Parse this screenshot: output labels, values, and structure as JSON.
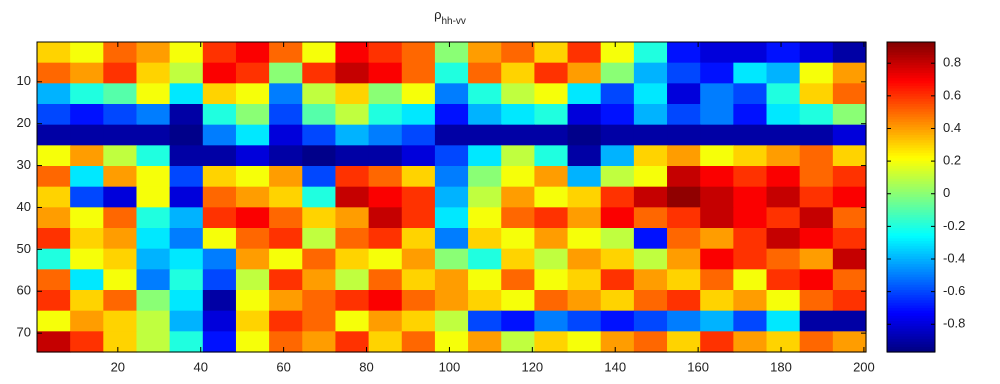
{
  "chart_data": {
    "type": "heatmap",
    "title": "ρ",
    "title_subscript": "hh-vv",
    "colormap": "jet",
    "xlim": [
      0.5,
      200.5
    ],
    "xticks": [
      20,
      40,
      60,
      80,
      100,
      120,
      140,
      160,
      180,
      200
    ],
    "ylim": [
      0.5,
      74.5
    ],
    "yticks": [
      10,
      20,
      30,
      40,
      50,
      60,
      70
    ],
    "y_reversed": true,
    "clim": [
      -0.97,
      0.93
    ],
    "cticks": [
      -0.8,
      -0.6,
      -0.4,
      -0.2,
      0,
      0.2,
      0.4,
      0.6,
      0.8
    ],
    "z": [
      [
        0.3,
        0.2,
        0.5,
        0.4,
        0.2,
        0.6,
        0.7,
        0.5,
        0.2,
        0.7,
        0.6,
        0.5,
        0.0,
        0.4,
        0.5,
        0.3,
        0.6,
        0.2,
        -0.2,
        -0.7,
        -0.8,
        -0.8,
        -0.7,
        -0.8,
        -0.9
      ],
      [
        0.5,
        0.4,
        0.6,
        0.3,
        0.1,
        0.7,
        0.6,
        0.0,
        0.6,
        0.8,
        0.7,
        0.5,
        -0.2,
        0.5,
        0.3,
        0.6,
        0.4,
        0.0,
        -0.4,
        -0.6,
        -0.7,
        -0.3,
        -0.4,
        0.2,
        0.4
      ],
      [
        -0.4,
        -0.2,
        -0.1,
        0.2,
        -0.3,
        0.3,
        0.2,
        -0.5,
        0.1,
        0.3,
        0.0,
        0.2,
        -0.5,
        -0.2,
        0.1,
        0.2,
        -0.3,
        -0.6,
        -0.3,
        -0.8,
        -0.5,
        -0.6,
        -0.2,
        0.3,
        0.5
      ],
      [
        -0.6,
        -0.7,
        -0.6,
        -0.5,
        -0.9,
        -0.2,
        0.0,
        -0.6,
        -0.1,
        0.1,
        -0.2,
        -0.3,
        -0.7,
        -0.4,
        -0.3,
        -0.2,
        -0.8,
        -0.7,
        -0.4,
        -0.6,
        -0.5,
        -0.7,
        -0.3,
        -0.2,
        0.0
      ],
      [
        -0.9,
        -0.9,
        -0.9,
        -0.9,
        -0.95,
        -0.5,
        -0.3,
        -0.8,
        -0.6,
        -0.4,
        -0.5,
        -0.6,
        -0.9,
        -0.9,
        -0.9,
        -0.9,
        -0.95,
        -0.9,
        -0.9,
        -0.9,
        -0.9,
        -0.9,
        -0.9,
        -0.9,
        -0.8
      ],
      [
        0.2,
        0.4,
        0.1,
        -0.2,
        -0.9,
        -0.9,
        -0.8,
        -0.9,
        -0.95,
        -0.9,
        -0.9,
        -0.8,
        -0.6,
        -0.3,
        0.1,
        -0.2,
        -0.9,
        -0.4,
        0.3,
        0.4,
        0.2,
        0.3,
        0.4,
        0.5,
        0.3
      ],
      [
        0.5,
        -0.3,
        0.4,
        0.2,
        -0.6,
        0.3,
        0.2,
        0.4,
        -0.6,
        0.6,
        0.5,
        0.3,
        -0.5,
        0.0,
        0.2,
        0.4,
        -0.4,
        0.1,
        0.2,
        0.8,
        0.7,
        0.6,
        0.7,
        0.5,
        0.6
      ],
      [
        0.3,
        -0.6,
        -0.8,
        0.2,
        -0.8,
        0.5,
        0.4,
        0.3,
        -0.2,
        0.8,
        0.7,
        0.6,
        -0.4,
        0.1,
        0.4,
        0.2,
        0.3,
        0.6,
        0.8,
        0.9,
        0.8,
        0.7,
        0.8,
        0.6,
        0.7
      ],
      [
        0.4,
        0.2,
        0.5,
        -0.2,
        -0.4,
        0.6,
        0.7,
        0.5,
        0.3,
        0.4,
        0.8,
        0.6,
        -0.3,
        0.2,
        0.5,
        0.6,
        0.4,
        0.7,
        0.5,
        0.6,
        0.8,
        0.7,
        0.6,
        0.8,
        0.5
      ],
      [
        0.6,
        0.3,
        0.4,
        -0.3,
        -0.5,
        0.2,
        0.5,
        0.6,
        0.1,
        0.5,
        0.6,
        0.3,
        -0.5,
        0.3,
        0.2,
        0.4,
        0.2,
        0.1,
        -0.7,
        0.5,
        0.4,
        0.6,
        0.8,
        0.7,
        0.6
      ],
      [
        -0.2,
        0.2,
        0.3,
        -0.4,
        -0.3,
        -0.5,
        0.4,
        0.2,
        0.5,
        0.3,
        0.2,
        0.4,
        0.0,
        -0.2,
        0.3,
        0.1,
        0.4,
        0.3,
        0.1,
        0.4,
        0.7,
        0.6,
        0.5,
        0.4,
        0.8
      ],
      [
        0.5,
        -0.3,
        0.2,
        -0.5,
        -0.2,
        -0.6,
        0.1,
        0.6,
        0.4,
        0.1,
        0.5,
        0.3,
        0.4,
        0.2,
        0.5,
        0.2,
        0.3,
        0.6,
        0.4,
        0.3,
        0.5,
        0.2,
        0.6,
        0.7,
        0.5
      ],
      [
        0.6,
        0.3,
        0.5,
        0.0,
        -0.3,
        -0.9,
        0.2,
        0.4,
        0.5,
        0.6,
        0.7,
        0.5,
        0.4,
        0.3,
        0.2,
        0.5,
        0.4,
        0.3,
        0.5,
        0.6,
        0.3,
        0.4,
        0.2,
        0.5,
        0.6
      ],
      [
        0.2,
        0.4,
        0.3,
        0.1,
        -0.4,
        -0.8,
        0.3,
        0.6,
        0.5,
        0.2,
        0.4,
        0.3,
        0.1,
        -0.6,
        -0.7,
        -0.5,
        -0.6,
        -0.7,
        -0.6,
        -0.5,
        -0.4,
        -0.6,
        -0.3,
        -0.9,
        -0.9
      ],
      [
        0.8,
        0.6,
        0.3,
        0.1,
        -0.2,
        -0.7,
        0.2,
        0.5,
        0.4,
        0.6,
        0.3,
        0.5,
        0.2,
        0.4,
        0.1,
        0.3,
        0.2,
        0.4,
        0.5,
        0.3,
        0.6,
        0.4,
        0.3,
        0.5,
        0.4
      ]
    ]
  }
}
